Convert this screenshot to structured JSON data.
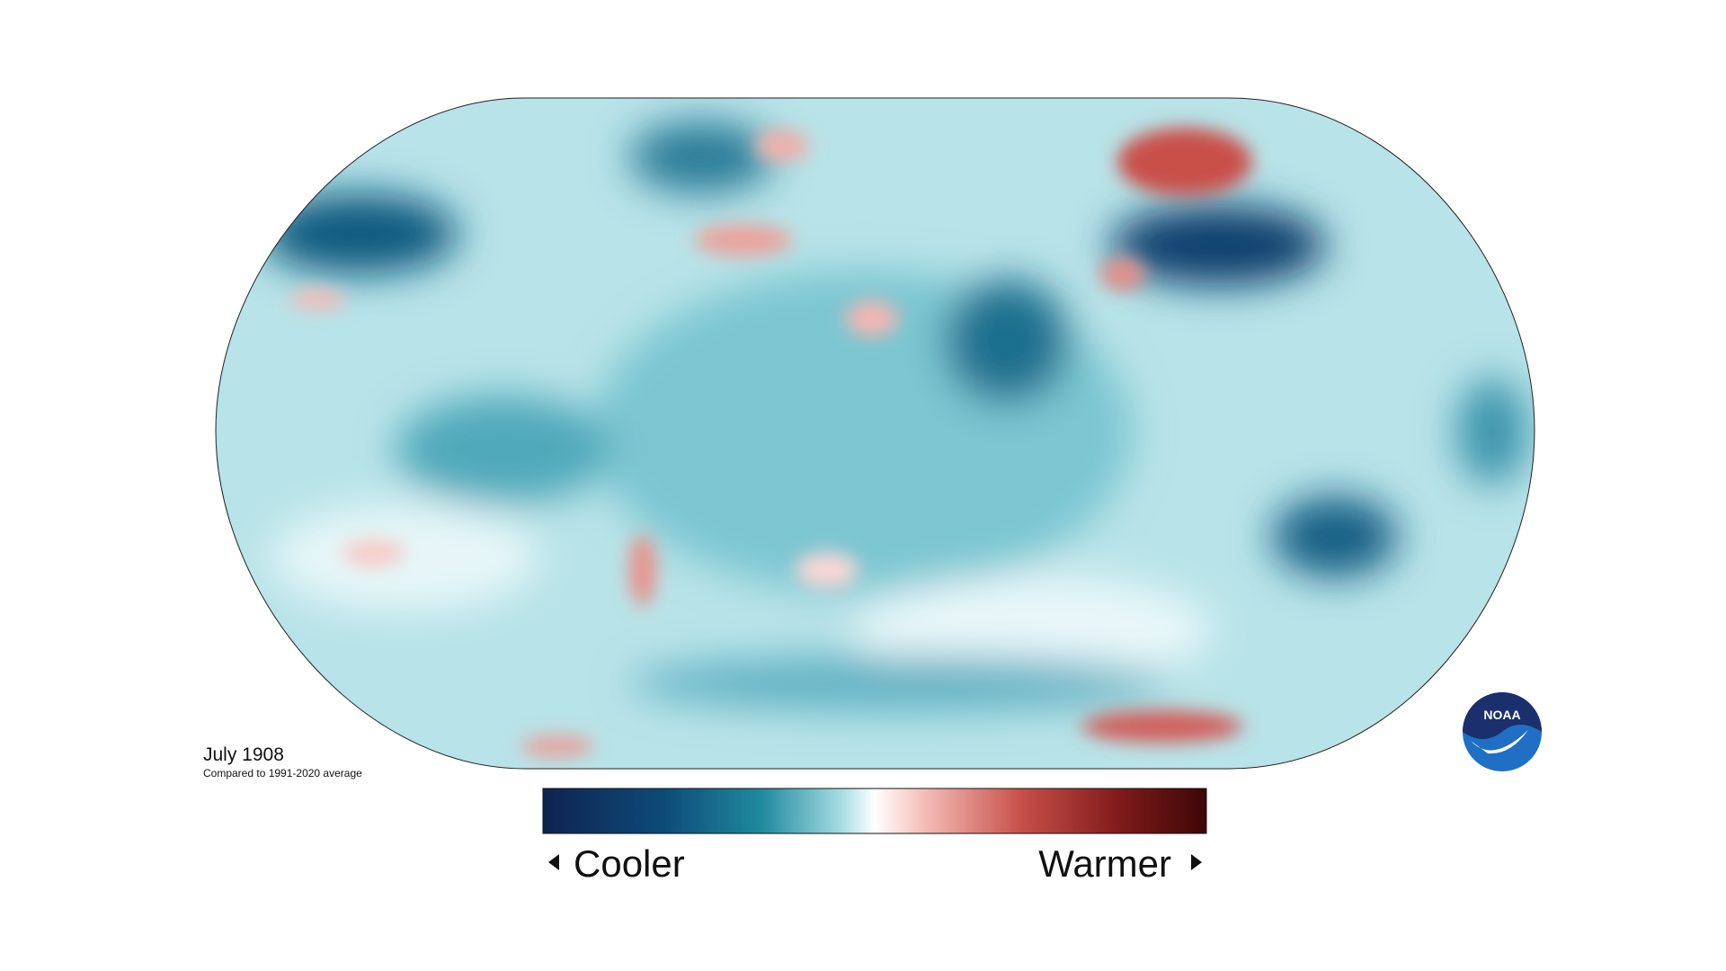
{
  "map": {
    "date": "July 1908",
    "baseline_note": "Compared to 1991-2020 average"
  },
  "legend": {
    "low_label": "Cooler",
    "high_label": "Warmer"
  },
  "logo": {
    "text": "NOAA"
  }
}
